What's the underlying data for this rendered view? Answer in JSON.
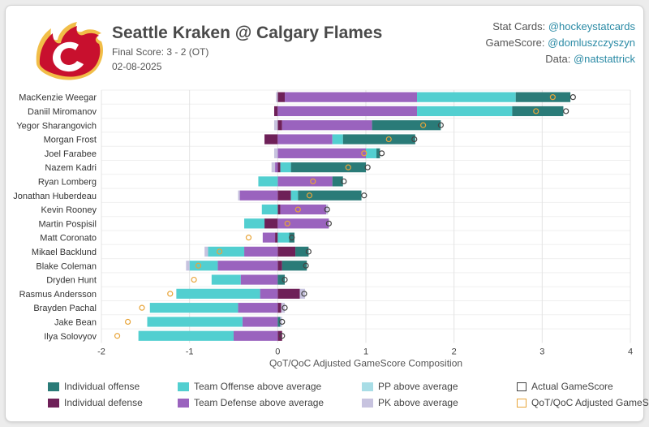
{
  "header": {
    "title": "Seattle Kraken @ Calgary Flames",
    "final_score": "Final Score: 3 - 2 (OT)",
    "date": "02-08-2025"
  },
  "credits": [
    {
      "label": "Stat Cards:",
      "handle": "@hockeystatcards"
    },
    {
      "label": "GameScore:",
      "handle": "@domluszczyszyn"
    },
    {
      "label": "Data:",
      "handle": "@natstattrick"
    }
  ],
  "colors": {
    "ind_off": "#2a7b78",
    "ind_def": "#6e2058",
    "team_off": "#52cfd0",
    "team_def": "#9a63be",
    "pp": "#a8dde6",
    "pk": "#c7c3df",
    "actual_marker": "#444444",
    "qot_marker": "#e8a53a",
    "logo_red": "#c8102e",
    "logo_yellow": "#f1be48"
  },
  "chart_data": {
    "type": "bar",
    "orientation": "horizontal",
    "stacked": true,
    "xlabel": "QoT/QoC Adjusted GameScore Composition",
    "xlim": [
      -2,
      4
    ],
    "xticks": [
      "-2",
      "-1",
      "0",
      "1",
      "2",
      "3",
      "4"
    ],
    "grid": true,
    "legend_position": "bottom",
    "categories": [
      "MacKenzie Weegar",
      "Daniil Miromanov",
      "Yegor Sharangovich",
      "Morgan Frost",
      "Joel Farabee",
      "Nazem Kadri",
      "Ryan Lomberg",
      "Jonathan Huberdeau",
      "Kevin Rooney",
      "Martin Pospisil",
      "Matt Coronato",
      "Mikael Backlund",
      "Blake Coleman",
      "Dryden Hunt",
      "Rasmus Andersson",
      "Brayden Pachal",
      "Jake Bean",
      "Ilya Solovyov"
    ],
    "series": [
      {
        "name": "Individual offense",
        "color_key": "ind_off",
        "values": [
          0.62,
          0.58,
          0.78,
          0.82,
          0.04,
          0.85,
          0.12,
          0.72,
          0,
          0,
          0.06,
          0.15,
          0.28,
          0.08,
          0,
          0,
          0.03,
          0
        ]
      },
      {
        "name": "Individual defense",
        "color_key": "ind_def",
        "values": [
          0.08,
          -0.04,
          0.05,
          -0.15,
          0,
          0.03,
          0,
          0.15,
          0.03,
          -0.15,
          -0.03,
          0.2,
          0.05,
          0,
          0.25,
          0.04,
          0,
          0.05
        ]
      },
      {
        "name": "Team Offense above average",
        "color_key": "team_off",
        "values": [
          1.12,
          1.08,
          0,
          0.12,
          0.12,
          0.12,
          -0.22,
          0.08,
          -0.18,
          -0.23,
          0.13,
          -0.41,
          -0.32,
          -0.33,
          -0.95,
          -1.0,
          -1.08,
          -1.08
        ]
      },
      {
        "name": "Team Defense above average",
        "color_key": "team_def",
        "values": [
          1.5,
          1.58,
          1.02,
          0.62,
          1.0,
          -0.03,
          0.62,
          -0.43,
          0.52,
          0.58,
          -0.14,
          -0.38,
          -0.68,
          -0.42,
          -0.2,
          -0.45,
          -0.4,
          -0.5
        ]
      },
      {
        "name": "PP above average",
        "color_key": "pp",
        "values": [
          0,
          0,
          0,
          0,
          0,
          0,
          0,
          0,
          0,
          0,
          0,
          0,
          0,
          0,
          0,
          0,
          0,
          0
        ]
      },
      {
        "name": "PK above average",
        "color_key": "pk",
        "values": [
          -0.02,
          0,
          -0.04,
          0,
          -0.04,
          -0.04,
          0,
          -0.02,
          0.02,
          0,
          0,
          -0.04,
          -0.04,
          0,
          0.06,
          0.04,
          0.02,
          0
        ]
      }
    ],
    "actual_gamescore": [
      3.35,
      3.27,
      1.85,
      1.55,
      1.18,
      1.02,
      0.75,
      0.98,
      0.56,
      0.58,
      0.16,
      0.35,
      0.32,
      0.08,
      0.3,
      0.08,
      0.05,
      0.05
    ],
    "qot_adjusted_gamescore": [
      3.12,
      2.93,
      1.65,
      1.26,
      0.98,
      0.8,
      0.4,
      0.36,
      0.23,
      0.11,
      -0.33,
      -0.66,
      -0.9,
      -0.95,
      -1.22,
      -1.54,
      -1.7,
      -1.82
    ],
    "legend": [
      {
        "name": "Individual offense",
        "type": "box",
        "color_key": "ind_off"
      },
      {
        "name": "Team Offense above average",
        "type": "box",
        "color_key": "team_off"
      },
      {
        "name": "PP above average",
        "type": "box",
        "color_key": "pp"
      },
      {
        "name": "Actual GameScore",
        "type": "open",
        "color_key": "actual_marker"
      },
      {
        "name": "Individual defense",
        "type": "box",
        "color_key": "ind_def"
      },
      {
        "name": "Team Defense above average",
        "type": "box",
        "color_key": "team_def"
      },
      {
        "name": "PK above average",
        "type": "box",
        "color_key": "pk"
      },
      {
        "name": "QoT/QoC Adjusted GameScore",
        "type": "open",
        "color_key": "qot_marker"
      }
    ]
  }
}
